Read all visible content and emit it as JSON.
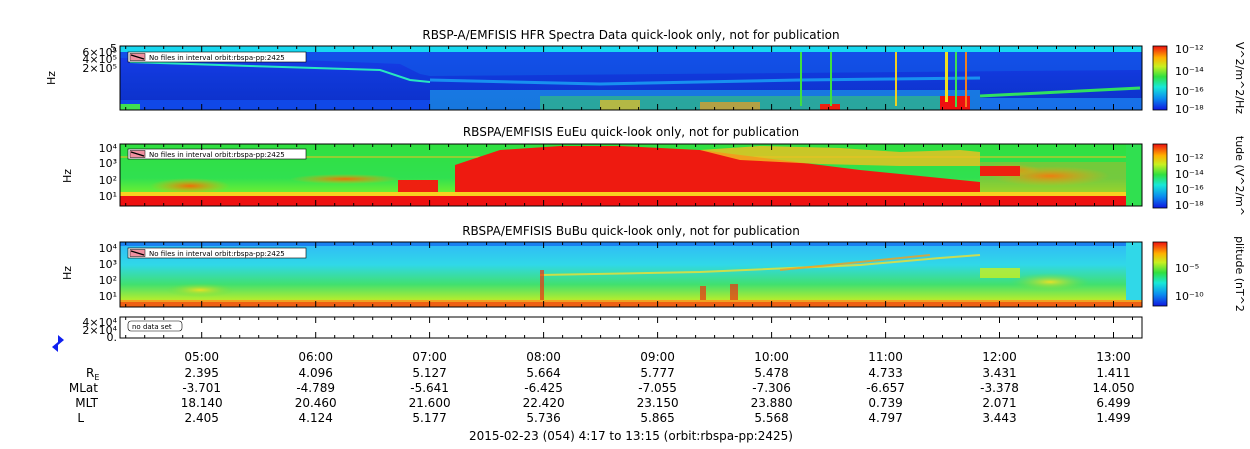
{
  "chart_data": [
    {
      "type": "heatmap",
      "title": "RBSP-A/EMFISIS  HFR Spectra Data quick-look only, not for publication",
      "ylabel": "Hz",
      "yticks": [
        "6×10⁵",
        "4×10⁵",
        "2×10⁵",
        "5"
      ],
      "colorbar_label": "V^2/m^2/Hz",
      "colorbar_ticks": [
        "10⁻¹²",
        "10⁻¹⁴",
        "10⁻¹⁶",
        "10⁻¹⁸"
      ],
      "legend": "No files in interval orbit:rbspa-pp:2425"
    },
    {
      "type": "heatmap",
      "title": "RBSPA/EMFISIS  EuEu quick-look only, not for publication",
      "ylabel": "Hz",
      "yticks": [
        "10⁴",
        "10³",
        "10²",
        "10¹"
      ],
      "colorbar_label": "tude (V^2/m^",
      "colorbar_ticks": [
        "10⁻¹²",
        "10⁻¹⁴",
        "10⁻¹⁶",
        "10⁻¹⁸"
      ],
      "legend": "No files in interval orbit:rbspa-pp:2425"
    },
    {
      "type": "heatmap",
      "title": "RBSPA/EMFISIS  BuBu quick-look only, not for publication",
      "ylabel": "Hz",
      "yticks": [
        "10⁴",
        "10³",
        "10²",
        "10¹"
      ],
      "colorbar_label": "plitude (nT^2",
      "colorbar_ticks": [
        "10⁻⁵",
        "10⁻¹⁰"
      ],
      "legend": "No files in interval orbit:rbspa-pp:2425"
    },
    {
      "type": "line",
      "title": "",
      "yticks": [
        "4×10⁴",
        "2×10⁴",
        "0."
      ],
      "legend": "no data set"
    }
  ],
  "time_axis": {
    "ticks": [
      "05:00",
      "06:00",
      "07:00",
      "08:00",
      "09:00",
      "10:00",
      "11:00",
      "12:00",
      "13:00"
    ],
    "start_hour": 4.2833,
    "end_hour": 13.25
  },
  "ephemeris": [
    {
      "label": "R",
      "label_sub": "E",
      "values": [
        "2.395",
        "4.096",
        "5.127",
        "5.664",
        "5.777",
        "5.478",
        "4.733",
        "3.431",
        "1.411"
      ]
    },
    {
      "label": "MLat",
      "label_sub": "",
      "values": [
        "-3.701",
        "-4.789",
        "-5.641",
        "-6.425",
        "-7.055",
        "-7.306",
        "-6.657",
        "-3.378",
        "14.050"
      ]
    },
    {
      "label": "MLT",
      "label_sub": "",
      "values": [
        "18.140",
        "20.460",
        "21.600",
        "22.420",
        "23.150",
        "23.880",
        "0.739",
        "2.071",
        "6.499"
      ]
    },
    {
      "label": "L",
      "label_sub": "",
      "values": [
        "2.405",
        "4.124",
        "5.177",
        "5.736",
        "5.865",
        "5.568",
        "4.797",
        "3.443",
        "1.499"
      ]
    }
  ],
  "footer": "2015-02-23 (054) 4:17 to 13:15 (orbit:rbspa-pp:2425)"
}
